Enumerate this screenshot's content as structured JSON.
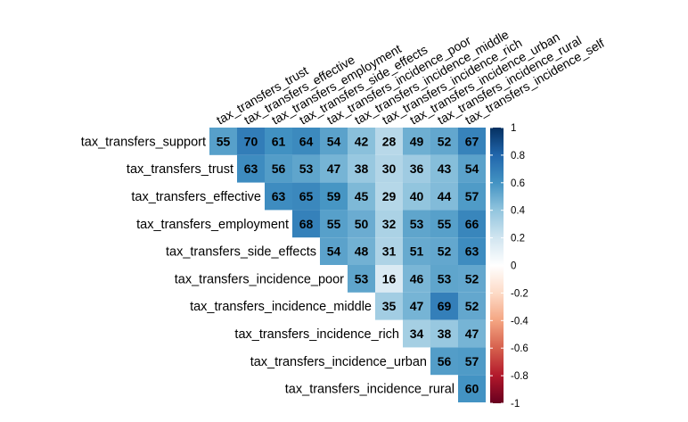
{
  "chart_data": {
    "type": "heatmap",
    "variant": "upper-triangle correlation matrix",
    "rows": [
      "tax_transfers_support",
      "tax_transfers_trust",
      "tax_transfers_effective",
      "tax_transfers_employment",
      "tax_transfers_side_effects",
      "tax_transfers_incidence_poor",
      "tax_transfers_incidence_middle",
      "tax_transfers_incidence_rich",
      "tax_transfers_incidence_urban",
      "tax_transfers_incidence_rural"
    ],
    "columns": [
      "tax_transfers_trust",
      "tax_transfers_effective",
      "tax_transfers_employment",
      "tax_transfers_side_effects",
      "tax_transfers_incidence_poor",
      "tax_transfers_incidence_middle",
      "tax_transfers_incidence_rich",
      "tax_transfers_incidence_urban",
      "tax_transfers_incidence_rural",
      "tax_transfers_incidence_self"
    ],
    "values": [
      [
        55,
        70,
        61,
        64,
        54,
        42,
        28,
        49,
        52,
        67
      ],
      [
        null,
        63,
        56,
        53,
        47,
        38,
        30,
        36,
        43,
        54
      ],
      [
        null,
        null,
        63,
        65,
        59,
        45,
        29,
        40,
        44,
        57
      ],
      [
        null,
        null,
        null,
        68,
        55,
        50,
        32,
        53,
        55,
        66
      ],
      [
        null,
        null,
        null,
        null,
        54,
        48,
        31,
        51,
        52,
        63
      ],
      [
        null,
        null,
        null,
        null,
        null,
        53,
        16,
        46,
        53,
        52
      ],
      [
        null,
        null,
        null,
        null,
        null,
        null,
        35,
        47,
        69,
        52
      ],
      [
        null,
        null,
        null,
        null,
        null,
        null,
        null,
        34,
        38,
        47
      ],
      [
        null,
        null,
        null,
        null,
        null,
        null,
        null,
        null,
        56,
        57
      ],
      [
        null,
        null,
        null,
        null,
        null,
        null,
        null,
        null,
        null,
        60
      ]
    ],
    "value_scale": "correlation x 100",
    "colorbar": {
      "range": [
        -1,
        1
      ],
      "ticks": [
        "1",
        "0.8",
        "0.6",
        "0.4",
        "0.2",
        "0",
        "-0.2",
        "-0.4",
        "-0.6",
        "-0.8",
        "-1"
      ],
      "colors": {
        "neg_strong": "#67001f",
        "neg_mid": "#d6604d",
        "neg_light": "#fddbc7",
        "zero": "#ffffff",
        "pos_light": "#d1e5f0",
        "pos_mid": "#4393c3",
        "pos_strong": "#053061"
      }
    },
    "grid": false,
    "legend_position": "right"
  }
}
